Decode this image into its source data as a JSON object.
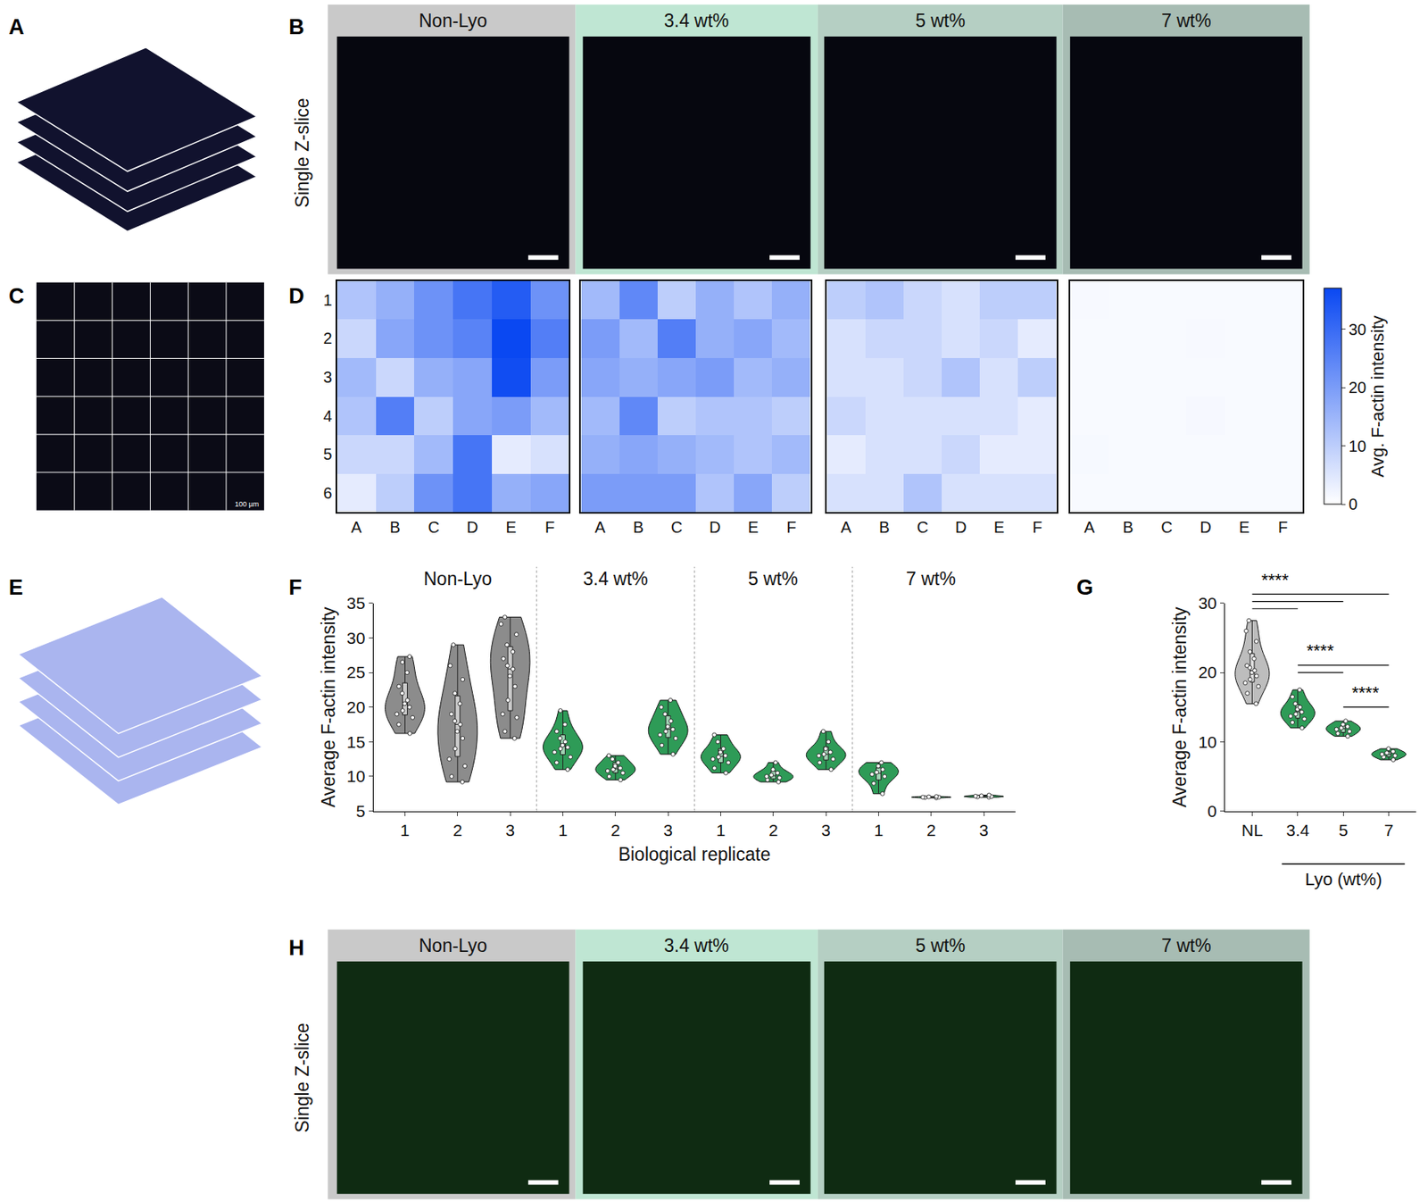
{
  "figure": {
    "panel_labels": [
      "A",
      "B",
      "C",
      "D",
      "E",
      "F",
      "G",
      "H"
    ],
    "image_rows": [
      {
        "row_label": "Single Z-slice",
        "headers": [
          "Non-Lyo",
          "3.4 wt%",
          "5 wt%",
          "7 wt%"
        ],
        "header_colors": [
          "#c9c9c9",
          "#bfe6d3",
          "#b5cfc3",
          "#a7bcb3"
        ],
        "image_color": "#06070f"
      },
      {
        "row_label": "Single Z-slice",
        "headers": [
          "Non-Lyo",
          "3.4 wt%",
          "5 wt%",
          "7 wt%"
        ],
        "header_colors": [
          "#c9c9c9",
          "#bfe6d3",
          "#b5cfc3",
          "#a7bcb3"
        ],
        "image_color": "#0f2b12"
      }
    ],
    "grid_image_scale_text": "100 µm"
  },
  "chart_data": [
    {
      "type": "heatmap",
      "x_categories": [
        "A",
        "B",
        "C",
        "D",
        "E",
        "F"
      ],
      "y_categories": [
        "1",
        "2",
        "3",
        "4",
        "5",
        "6"
      ],
      "tick_labels": true,
      "zlim": [
        0,
        37
      ],
      "cells": [
        [
          12,
          16,
          22,
          28,
          33,
          22
        ],
        [
          8,
          18,
          22,
          25,
          37,
          26
        ],
        [
          14,
          8,
          16,
          18,
          36,
          20
        ],
        [
          12,
          26,
          10,
          18,
          20,
          14
        ],
        [
          8,
          8,
          14,
          28,
          4,
          6
        ],
        [
          4,
          10,
          22,
          28,
          16,
          18
        ]
      ]
    },
    {
      "type": "heatmap",
      "x_categories": [
        "A",
        "B",
        "C",
        "D",
        "E",
        "F"
      ],
      "y_categories": [
        "1",
        "2",
        "3",
        "4",
        "5",
        "6"
      ],
      "tick_labels": "x",
      "zlim": [
        0,
        37
      ],
      "cells": [
        [
          14,
          24,
          10,
          16,
          12,
          16
        ],
        [
          20,
          14,
          26,
          16,
          18,
          14
        ],
        [
          18,
          16,
          18,
          20,
          14,
          16
        ],
        [
          14,
          24,
          10,
          12,
          12,
          10
        ],
        [
          16,
          18,
          16,
          14,
          12,
          14
        ],
        [
          20,
          20,
          20,
          12,
          18,
          10
        ]
      ]
    },
    {
      "type": "heatmap",
      "x_categories": [
        "A",
        "B",
        "C",
        "D",
        "E",
        "F"
      ],
      "y_categories": [
        "1",
        "2",
        "3",
        "4",
        "5",
        "6"
      ],
      "tick_labels": "x",
      "zlim": [
        0,
        37
      ],
      "cells": [
        [
          10,
          12,
          8,
          6,
          10,
          10
        ],
        [
          6,
          8,
          8,
          6,
          8,
          4
        ],
        [
          6,
          6,
          8,
          12,
          6,
          10
        ],
        [
          8,
          6,
          6,
          6,
          6,
          4
        ],
        [
          4,
          6,
          6,
          8,
          4,
          4
        ],
        [
          6,
          6,
          12,
          6,
          6,
          6
        ]
      ]
    },
    {
      "type": "heatmap",
      "x_categories": [
        "A",
        "B",
        "C",
        "D",
        "E",
        "F"
      ],
      "y_categories": [
        "1",
        "2",
        "3",
        "4",
        "5",
        "6"
      ],
      "tick_labels": "x",
      "zlim": [
        0,
        37
      ],
      "cells": [
        [
          1.2,
          1.0,
          1.1,
          1.0,
          1.0,
          1.1
        ],
        [
          1.0,
          1.1,
          1.0,
          1.2,
          1.0,
          1.0
        ],
        [
          1.1,
          1.0,
          1.0,
          1.0,
          1.1,
          1.0
        ],
        [
          1.0,
          1.0,
          1.1,
          1.4,
          1.0,
          1.0
        ],
        [
          1.3,
          1.0,
          1.0,
          1.1,
          1.0,
          1.0
        ],
        [
          1.0,
          1.1,
          1.0,
          1.0,
          1.0,
          1.1
        ]
      ],
      "colorbar": {
        "title": "Avg. F-actin intensity",
        "ticks": [
          0,
          10,
          20,
          30
        ]
      }
    },
    {
      "type": "violin",
      "y_label": "Average F-actin intensity",
      "x_label": "Biological replicate",
      "ylim": [
        5,
        35
      ],
      "yticks": [
        5,
        10,
        15,
        20,
        25,
        30,
        35
      ],
      "groups": [
        {
          "label": "Non-Lyo",
          "color": "#8c8c8c",
          "replicates": [
            {
              "category": "1",
              "values": [
                16.2,
                17.5,
                18.5,
                19,
                19.5,
                20,
                20.5,
                21,
                22,
                23,
                25,
                26.5,
                27.3
              ]
            },
            {
              "category": "2",
              "values": [
                9.2,
                10,
                11.5,
                12.5,
                14,
                15.5,
                16.5,
                17.5,
                18,
                19,
                20.5,
                22,
                24,
                26,
                29
              ]
            },
            {
              "category": "3",
              "values": [
                15.5,
                16.5,
                18.5,
                19,
                21,
                23,
                24.5,
                25.5,
                26,
                27,
                28,
                29,
                30.5,
                32,
                33
              ]
            }
          ]
        },
        {
          "label": "3.4 wt%",
          "color": "#2e9b57",
          "replicates": [
            {
              "category": "1",
              "values": [
                11,
                12,
                12.8,
                13.5,
                14,
                14.2,
                14.5,
                15,
                15.5,
                16.5,
                17.5,
                19.5
              ]
            },
            {
              "category": "2",
              "values": [
                9.5,
                10,
                10.5,
                10.8,
                11,
                11.2,
                11.5,
                12,
                12.5,
                13
              ]
            },
            {
              "category": "3",
              "values": [
                13.2,
                14.5,
                15.5,
                16,
                16.5,
                16.8,
                17.2,
                18,
                19,
                20,
                21
              ]
            }
          ]
        },
        {
          "label": "5 wt%",
          "color": "#2e9b57",
          "replicates": [
            {
              "category": "1",
              "values": [
                10.5,
                11.2,
                12,
                12.5,
                12.8,
                13,
                13.5,
                14,
                15,
                16
              ]
            },
            {
              "category": "2",
              "values": [
                9.2,
                9.5,
                9.8,
                10,
                10.2,
                10.5,
                11,
                12
              ]
            },
            {
              "category": "3",
              "values": [
                11,
                12,
                12.5,
                13,
                13.2,
                13.5,
                14,
                15,
                16.5
              ]
            }
          ]
        },
        {
          "label": "7 wt%",
          "color": "#2e9b57",
          "replicates": [
            {
              "category": "1",
              "values": [
                7.5,
                9,
                10,
                10.3,
                10.6,
                11,
                11.5,
                12
              ]
            },
            {
              "category": "2",
              "values": [
                6.9,
                6.95,
                7,
                7,
                7.05,
                7.1
              ]
            },
            {
              "category": "3",
              "values": [
                7,
                7.05,
                7.1,
                7.15,
                7.2,
                7.3
              ]
            }
          ]
        }
      ]
    },
    {
      "type": "violin",
      "y_label": "Average F-actin intensity",
      "ylim": [
        0,
        30
      ],
      "yticks": [
        0,
        10,
        20,
        30
      ],
      "categories": [
        "NL",
        "3.4",
        "5",
        "7"
      ],
      "colors": [
        "#bdbdbd",
        "#2e9b57",
        "#2e9b57",
        "#2e9b57"
      ],
      "values": [
        [
          15.5,
          17,
          18,
          18.5,
          19,
          19.5,
          20,
          20.3,
          20.7,
          21,
          22,
          23,
          24.5,
          26,
          27.5
        ],
        [
          12,
          12.8,
          13.3,
          13.7,
          14,
          14.3,
          14.7,
          15,
          15.5,
          16.5,
          17.5
        ],
        [
          10.8,
          11.2,
          11.5,
          11.8,
          12,
          12.2,
          12.5,
          13
        ],
        [
          7.4,
          7.8,
          8,
          8.2,
          8.4,
          8.6,
          9
        ]
      ],
      "x_group_label": {
        "label": "Lyo (wt%)",
        "categories": [
          "3.4",
          "5",
          "7"
        ]
      },
      "significance": [
        {
          "from": "NL",
          "to": [
            "3.4",
            "5",
            "7"
          ],
          "label": "****"
        },
        {
          "from": "3.4",
          "to": [
            "5",
            "7"
          ],
          "label": "****"
        },
        {
          "from": "5",
          "to": [
            "7"
          ],
          "label": "****"
        }
      ]
    }
  ]
}
